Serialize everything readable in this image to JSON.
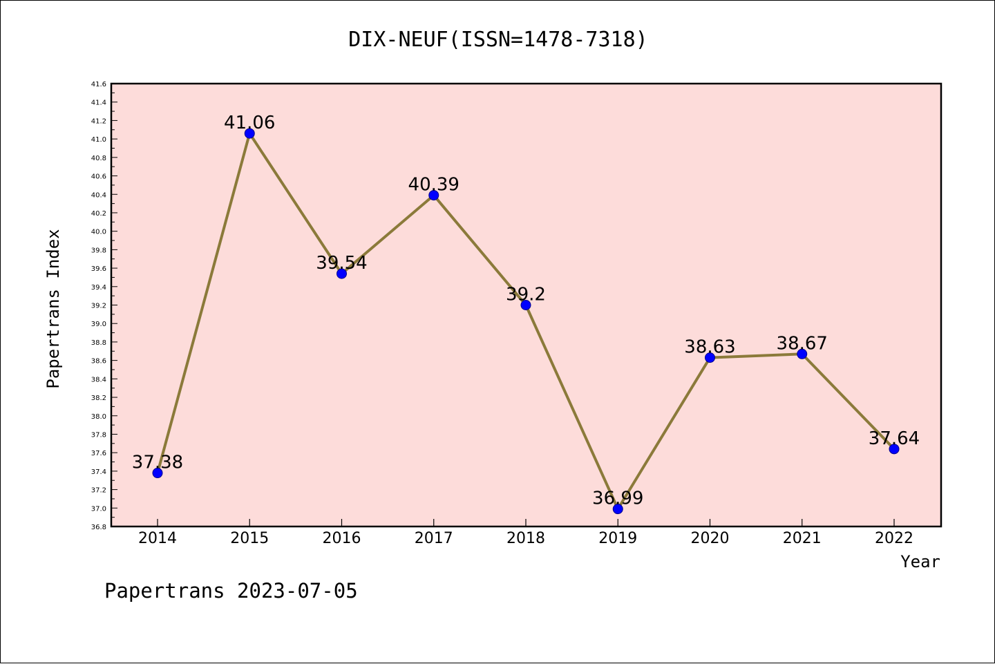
{
  "chart_data": {
    "type": "line",
    "title": "DIX-NEUF(ISSN=1478-7318)",
    "xlabel": "Year",
    "ylabel": "Papertrans Index",
    "categories": [
      "2014",
      "2015",
      "2016",
      "2017",
      "2018",
      "2019",
      "2020",
      "2021",
      "2022"
    ],
    "values": [
      37.38,
      41.06,
      39.54,
      40.39,
      39.2,
      36.99,
      38.63,
      38.67,
      37.64
    ],
    "data_labels": [
      "37.38",
      "41.06",
      "39.54",
      "40.39",
      "39.2",
      "36.99",
      "38.63",
      "38.67",
      "37.64"
    ],
    "ylim": [
      36.8,
      41.6
    ],
    "yticks": [
      "36.8",
      "37.0",
      "37.2",
      "37.4",
      "37.6",
      "37.8",
      "38.0",
      "38.2",
      "38.4",
      "38.6",
      "38.8",
      "39.0",
      "39.2",
      "39.4",
      "39.6",
      "39.8",
      "40.0",
      "40.2",
      "40.4",
      "40.6",
      "40.8",
      "41.0",
      "41.2",
      "41.4",
      "41.6"
    ],
    "grid": false,
    "colors": {
      "plot_background": "#fddcda",
      "line": "#8b7a3a",
      "marker": "#0000ff",
      "axes": "#000000"
    }
  },
  "footer": "Papertrans 2023-07-05"
}
